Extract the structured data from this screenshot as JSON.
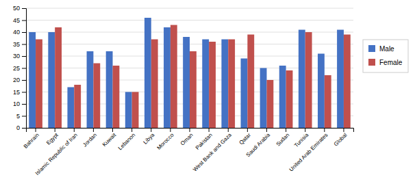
{
  "chart_data": {
    "type": "bar",
    "categories": [
      "Bahrain",
      "Egypt",
      "Islamic Republic of Iran",
      "Jordan",
      "Kuwait",
      "Lebanon",
      "Libya",
      "Morocco",
      "Oman",
      "Pakistan",
      "West Bank and Gaza",
      "Qatar",
      "Saudi Arabia",
      "Sudan",
      "Tunisia",
      "United Arab Emirates",
      "Global"
    ],
    "series": [
      {
        "name": "Male",
        "color": "#4472C4",
        "values": [
          40,
          40,
          17,
          32,
          32,
          15,
          46,
          42,
          38,
          37,
          37,
          29,
          25,
          26,
          41,
          31,
          41
        ]
      },
      {
        "name": "Female",
        "color": "#C0504D",
        "values": [
          37,
          42,
          18,
          27,
          26,
          15,
          37,
          43,
          32,
          36,
          37,
          39,
          20,
          24,
          40,
          22,
          39
        ]
      }
    ],
    "ylim": [
      0,
      50
    ],
    "yticks": [
      0,
      5,
      10,
      15,
      20,
      25,
      30,
      35,
      40,
      45,
      50
    ],
    "grid": true,
    "legend": "right"
  }
}
